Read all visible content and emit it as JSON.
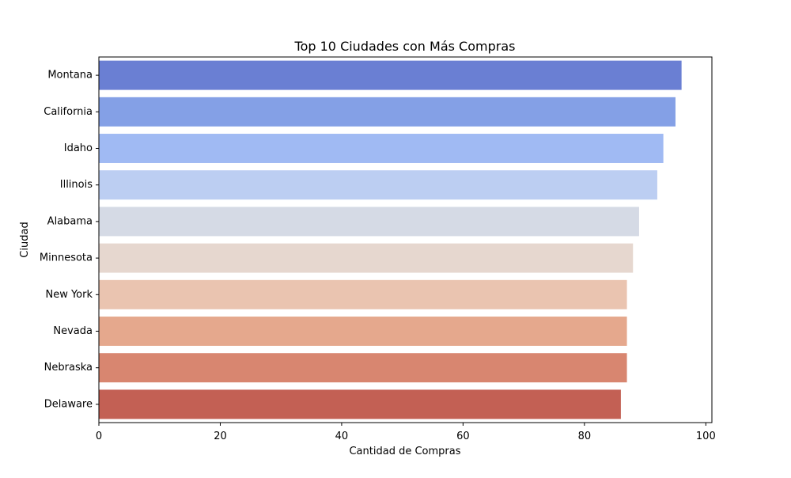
{
  "chart_data": {
    "type": "bar",
    "orientation": "horizontal",
    "title": "Top 10 Ciudades con Más Compras",
    "xlabel": "Cantidad de Compras",
    "ylabel": "Ciudad",
    "categories": [
      "Montana",
      "California",
      "Idaho",
      "Illinois",
      "Alabama",
      "Minnesota",
      "New York",
      "Nevada",
      "Nebraska",
      "Delaware"
    ],
    "values": [
      96,
      95,
      93,
      92,
      89,
      88,
      87,
      87,
      87,
      86
    ],
    "colors": [
      "#6a7fd3",
      "#84a0e6",
      "#a0baf3",
      "#bccef2",
      "#d5dae5",
      "#e6d7cf",
      "#eac4b0",
      "#e5a88d",
      "#d88670",
      "#c36054"
    ],
    "xlim": [
      0,
      101
    ],
    "xticks": [
      0,
      20,
      40,
      60,
      80,
      100
    ],
    "grid": false,
    "legend": "none"
  }
}
